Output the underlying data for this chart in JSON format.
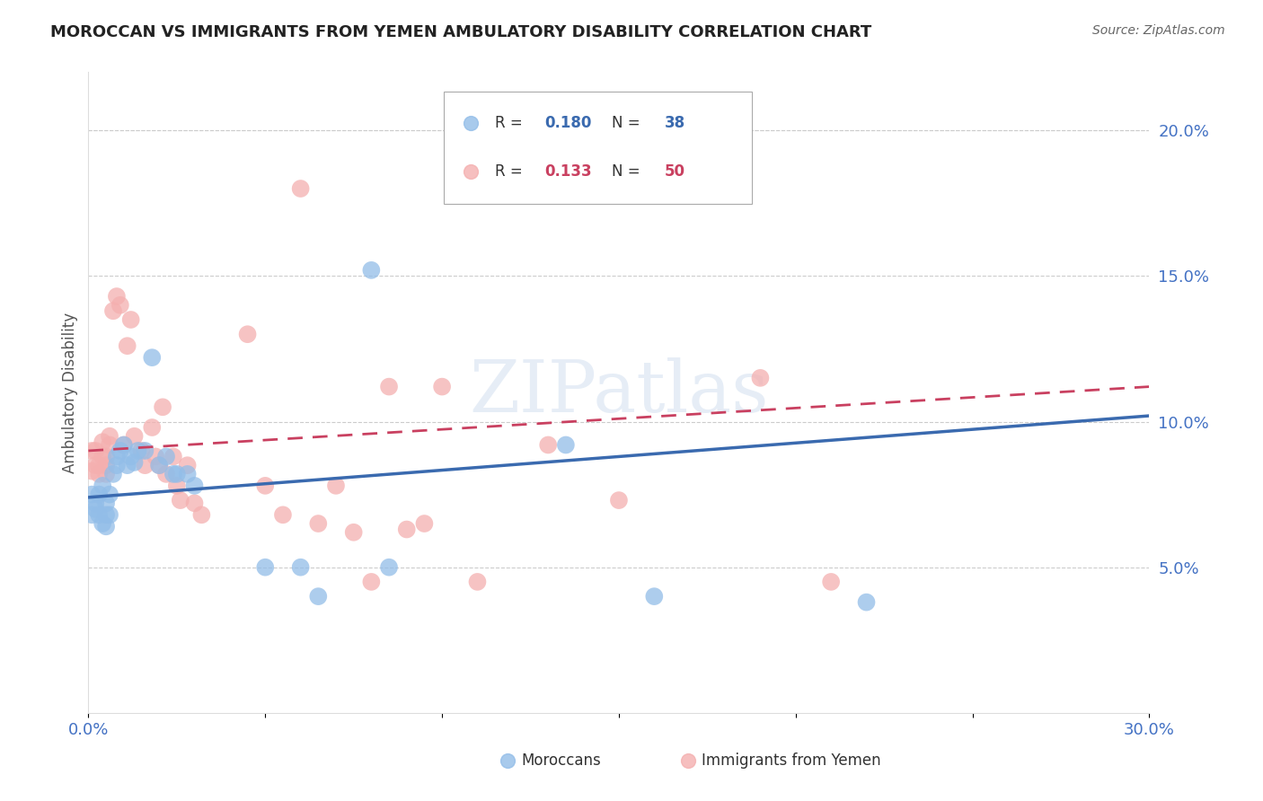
{
  "title": "MOROCCAN VS IMMIGRANTS FROM YEMEN AMBULATORY DISABILITY CORRELATION CHART",
  "source": "Source: ZipAtlas.com",
  "ylabel": "Ambulatory Disability",
  "xlim": [
    0.0,
    0.3
  ],
  "ylim": [
    0.0,
    0.22
  ],
  "moroccan_color": "#92bde8",
  "yemen_color": "#f4afaf",
  "moroccan_line_color": "#3a6aaf",
  "yemen_line_color": "#c94060",
  "R_moroccan": 0.18,
  "N_moroccan": 38,
  "R_yemen": 0.133,
  "N_yemen": 50,
  "legend_label_moroccan": "Moroccans",
  "legend_label_yemen": "Immigrants from Yemen",
  "watermark": "ZIPatlas",
  "moroccan_x": [
    0.001,
    0.001,
    0.002,
    0.002,
    0.003,
    0.003,
    0.004,
    0.004,
    0.005,
    0.005,
    0.005,
    0.006,
    0.006,
    0.007,
    0.008,
    0.008,
    0.009,
    0.01,
    0.011,
    0.012,
    0.013,
    0.014,
    0.016,
    0.018,
    0.02,
    0.022,
    0.025,
    0.028,
    0.03,
    0.05,
    0.06,
    0.065,
    0.08,
    0.085,
    0.135,
    0.16,
    0.22,
    0.024
  ],
  "moroccan_y": [
    0.075,
    0.068,
    0.072,
    0.07,
    0.075,
    0.068,
    0.078,
    0.065,
    0.072,
    0.068,
    0.064,
    0.075,
    0.068,
    0.082,
    0.085,
    0.088,
    0.09,
    0.092,
    0.085,
    0.088,
    0.086,
    0.09,
    0.09,
    0.122,
    0.085,
    0.088,
    0.082,
    0.082,
    0.078,
    0.05,
    0.05,
    0.04,
    0.152,
    0.05,
    0.092,
    0.04,
    0.038,
    0.082
  ],
  "yemen_x": [
    0.001,
    0.001,
    0.002,
    0.002,
    0.003,
    0.003,
    0.004,
    0.004,
    0.005,
    0.005,
    0.005,
    0.006,
    0.006,
    0.007,
    0.008,
    0.009,
    0.01,
    0.011,
    0.012,
    0.013,
    0.015,
    0.016,
    0.018,
    0.019,
    0.02,
    0.021,
    0.022,
    0.024,
    0.025,
    0.026,
    0.028,
    0.03,
    0.032,
    0.045,
    0.05,
    0.055,
    0.06,
    0.065,
    0.07,
    0.075,
    0.08,
    0.085,
    0.09,
    0.095,
    0.1,
    0.11,
    0.13,
    0.15,
    0.19,
    0.21
  ],
  "yemen_y": [
    0.09,
    0.083,
    0.09,
    0.085,
    0.085,
    0.082,
    0.093,
    0.088,
    0.088,
    0.085,
    0.082,
    0.095,
    0.092,
    0.138,
    0.143,
    0.14,
    0.092,
    0.126,
    0.135,
    0.095,
    0.09,
    0.085,
    0.098,
    0.088,
    0.085,
    0.105,
    0.082,
    0.088,
    0.078,
    0.073,
    0.085,
    0.072,
    0.068,
    0.13,
    0.078,
    0.068,
    0.18,
    0.065,
    0.078,
    0.062,
    0.045,
    0.112,
    0.063,
    0.065,
    0.112,
    0.045,
    0.092,
    0.073,
    0.115,
    0.045
  ]
}
